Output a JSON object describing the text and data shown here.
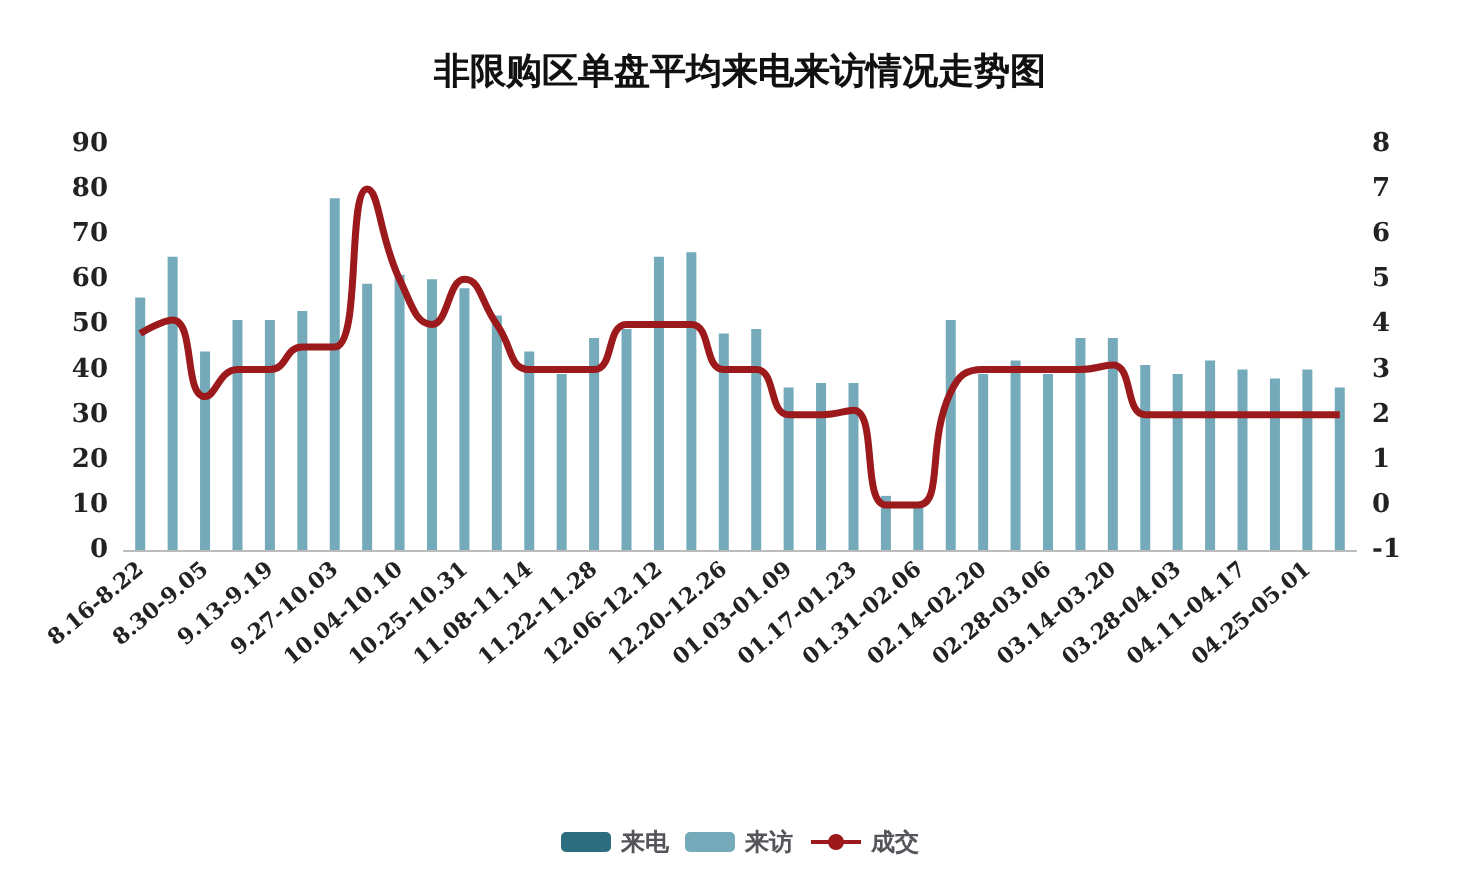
{
  "chart_data": {
    "type": "bar",
    "title": "非限购区单盘平均来电来访情况走势图",
    "categories": [
      "8.16-8.22",
      null,
      "8.30-9.05",
      null,
      "9.13-9.19",
      null,
      "9.27-10.03",
      null,
      "10.04-10.10",
      null,
      "10.25-10.31",
      null,
      "11.08-11.14",
      null,
      "11.22-11.28",
      null,
      "12.06-12.12",
      null,
      "12.20-12.26",
      null,
      "01.03-01.09",
      null,
      "01.17-01.23",
      null,
      "01.31-02.06",
      null,
      "02.14-02.20",
      null,
      "02.28-03.06",
      null,
      "03.14-03.20",
      null,
      "03.28-04.03",
      null,
      "04.11-04.17",
      null,
      "04.25-05.01",
      null
    ],
    "series": [
      {
        "name": "来电",
        "color": "#2c6e7f",
        "values": [
          null,
          null,
          null,
          null,
          null,
          null,
          null,
          null,
          null,
          null,
          null,
          null,
          null,
          null,
          null,
          null,
          null,
          null,
          null,
          null,
          null,
          null,
          null,
          null,
          null,
          null,
          null,
          null,
          null,
          null,
          null,
          null,
          null,
          null,
          null,
          null,
          null,
          null
        ]
      },
      {
        "name": "来访",
        "color": "#74aab9",
        "values": [
          56,
          65,
          44,
          51,
          51,
          53,
          78,
          59,
          61,
          60,
          58,
          52,
          44,
          39,
          47,
          49,
          65,
          66,
          48,
          49,
          36,
          37,
          37,
          12,
          10,
          51,
          39,
          42,
          39,
          47,
          47,
          41,
          39,
          42,
          40,
          38,
          40,
          36
        ]
      },
      {
        "name": "成交",
        "type": "line",
        "axis": "y2",
        "color": "#9c1a1c",
        "values": [
          3.8,
          4.1,
          2.4,
          3,
          3,
          3.5,
          3.5,
          7,
          5,
          4,
          5,
          4,
          3,
          3,
          3,
          4,
          4,
          4,
          3,
          3,
          2,
          2,
          2.1,
          0,
          0,
          2.5,
          3,
          3,
          3,
          3,
          3.1,
          2,
          2,
          2,
          2,
          2,
          2,
          2
        ]
      }
    ],
    "ylim": [
      0,
      90
    ],
    "yticks": [
      0,
      10,
      20,
      30,
      40,
      50,
      60,
      70,
      80,
      90
    ],
    "y2lim": [
      -1,
      8
    ],
    "y2ticks": [
      -1,
      0,
      1,
      2,
      3,
      4,
      5,
      6,
      7,
      8
    ],
    "grid": false,
    "legend": "bottom",
    "marker": "none"
  }
}
